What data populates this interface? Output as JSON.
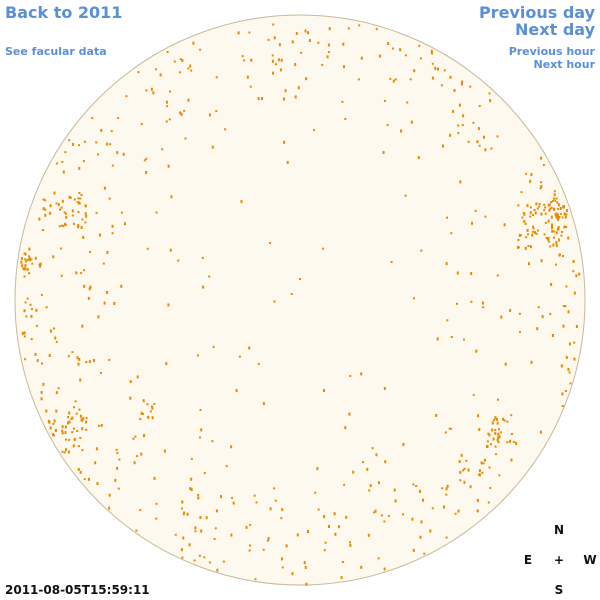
{
  "navigation": {
    "back_label": "Back to 2011",
    "facular_label": "See facular data",
    "previous_day_label": "Previous day",
    "next_day_label": "Next day",
    "previous_hour_label": "Previous hour",
    "next_hour_label": "Next hour"
  },
  "observation": {
    "timestamp": "2011-08-05T15:59:11"
  },
  "compass": {
    "north": "N",
    "east": "E",
    "center": "+",
    "west": "W",
    "south": "S"
  },
  "colors": {
    "link": "#5b8fd6",
    "disk_fill": "#fef9ee",
    "disk_stroke": "#c8b89a",
    "network_marks": "#e88a00"
  }
}
